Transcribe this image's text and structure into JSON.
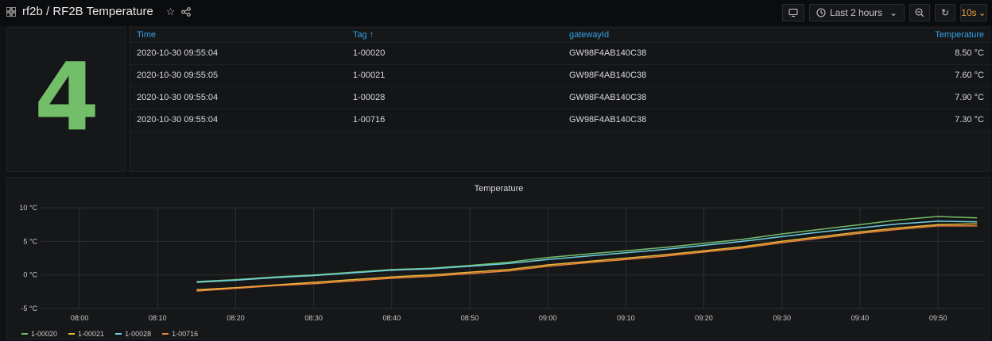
{
  "header": {
    "title": "rf2b / RF2B Temperature",
    "time_range": "Last 2 hours",
    "refresh_interval": "10s"
  },
  "stat": {
    "value": "4",
    "color": "#73bf69"
  },
  "table": {
    "columns": [
      "Time",
      "Tag ↑",
      "gatewayId",
      "Temperature"
    ],
    "rows": [
      [
        "2020-10-30 09:55:04",
        "1-00020",
        "GW98F4AB140C38",
        "8.50 °C"
      ],
      [
        "2020-10-30 09:55:05",
        "1-00021",
        "GW98F4AB140C38",
        "7.60 °C"
      ],
      [
        "2020-10-30 09:55:04",
        "1-00028",
        "GW98F4AB140C38",
        "7.90 °C"
      ],
      [
        "2020-10-30 09:55:04",
        "1-00716",
        "GW98F4AB140C38",
        "7.30 °C"
      ]
    ]
  },
  "chart_data": {
    "type": "line",
    "title": "Temperature",
    "xlabel": "",
    "ylabel": "",
    "x_tick_labels": [
      "08:00",
      "08:10",
      "08:20",
      "08:30",
      "08:40",
      "08:50",
      "09:00",
      "09:10",
      "09:20",
      "09:30",
      "09:40",
      "09:50"
    ],
    "y_tick_labels": [
      "10 °C",
      "5 °C",
      "0 °C",
      "-5 °C"
    ],
    "ylim": [
      -5,
      10
    ],
    "xlim_minutes_of_day": [
      475,
      596
    ],
    "grid": true,
    "legend_position": "bottom-left",
    "series": [
      {
        "name": "1-00020",
        "color": "#73bf69",
        "x": [
          "08:15",
          "08:20",
          "08:25",
          "08:30",
          "08:35",
          "08:40",
          "08:45",
          "08:50",
          "08:55",
          "09:00",
          "09:05",
          "09:10",
          "09:15",
          "09:20",
          "09:25",
          "09:30",
          "09:35",
          "09:40",
          "09:45",
          "09:50",
          "09:55"
        ],
        "values": [
          -1.0,
          -0.7,
          -0.3,
          0.0,
          0.4,
          0.8,
          1.0,
          1.4,
          1.9,
          2.6,
          3.1,
          3.6,
          4.1,
          4.7,
          5.3,
          6.1,
          6.8,
          7.5,
          8.2,
          8.7,
          8.5
        ]
      },
      {
        "name": "1-00021",
        "color": "#eab839",
        "x": [
          "08:15",
          "08:20",
          "08:25",
          "08:30",
          "08:35",
          "08:40",
          "08:45",
          "08:50",
          "08:55",
          "09:00",
          "09:05",
          "09:10",
          "09:15",
          "09:20",
          "09:25",
          "09:30",
          "09:35",
          "09:40",
          "09:45",
          "09:50",
          "09:55"
        ],
        "values": [
          -2.2,
          -1.9,
          -1.5,
          -1.1,
          -0.7,
          -0.3,
          0.0,
          0.4,
          0.8,
          1.5,
          2.0,
          2.5,
          3.0,
          3.6,
          4.2,
          5.0,
          5.7,
          6.4,
          7.0,
          7.5,
          7.6
        ]
      },
      {
        "name": "1-00028",
        "color": "#6ed0e0",
        "x": [
          "08:15",
          "08:20",
          "08:25",
          "08:30",
          "08:35",
          "08:40",
          "08:45",
          "08:50",
          "08:55",
          "09:00",
          "09:05",
          "09:10",
          "09:15",
          "09:20",
          "09:25",
          "09:30",
          "09:35",
          "09:40",
          "09:45",
          "09:50",
          "09:55"
        ],
        "values": [
          -1.1,
          -0.8,
          -0.4,
          -0.1,
          0.3,
          0.7,
          0.9,
          1.3,
          1.7,
          2.3,
          2.8,
          3.3,
          3.8,
          4.4,
          5.0,
          5.7,
          6.4,
          7.0,
          7.6,
          8.0,
          7.9
        ]
      },
      {
        "name": "1-00716",
        "color": "#ef843c",
        "x": [
          "08:15",
          "08:20",
          "08:25",
          "08:30",
          "08:35",
          "08:40",
          "08:45",
          "08:50",
          "08:55",
          "09:00",
          "09:05",
          "09:10",
          "09:15",
          "09:20",
          "09:25",
          "09:30",
          "09:35",
          "09:40",
          "09:45",
          "09:50",
          "09:55"
        ],
        "values": [
          -2.4,
          -2.0,
          -1.6,
          -1.3,
          -0.9,
          -0.5,
          -0.2,
          0.2,
          0.6,
          1.3,
          1.8,
          2.3,
          2.8,
          3.4,
          4.0,
          4.8,
          5.5,
          6.2,
          6.8,
          7.3,
          7.3
        ]
      }
    ]
  }
}
